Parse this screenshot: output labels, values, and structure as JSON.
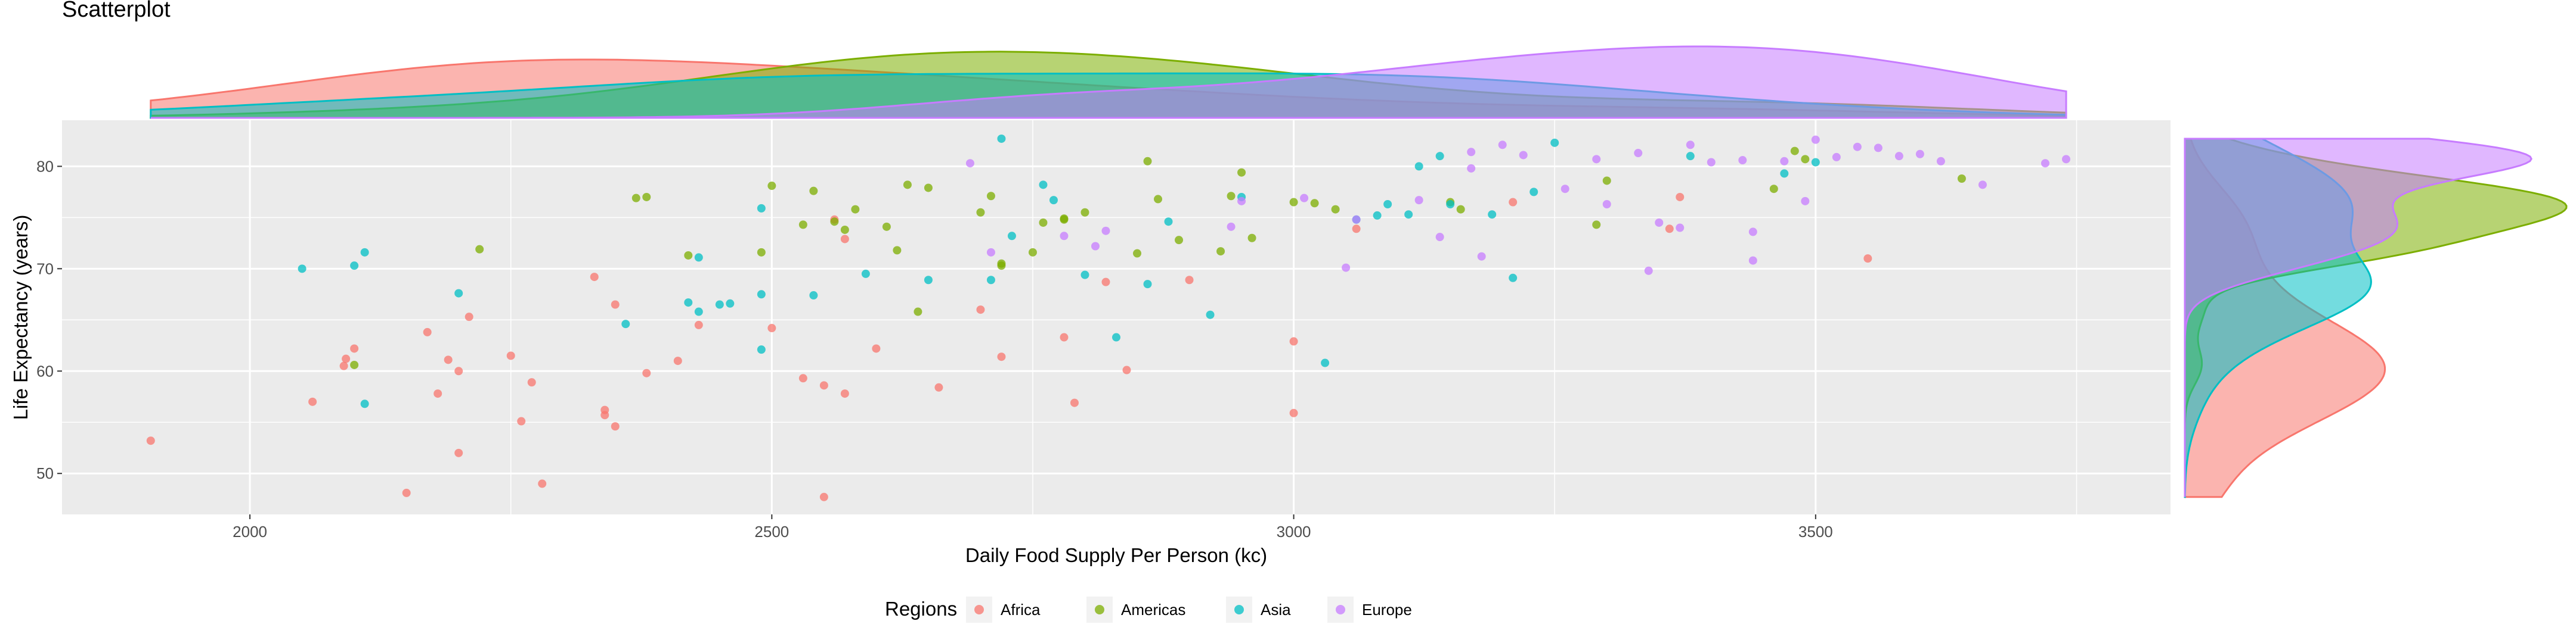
{
  "chart_data": {
    "type": "scatter",
    "title": "Scatterplot",
    "xlabel": "Daily Food Supply Per Person (kc)",
    "ylabel": "Life Expectancy (years)",
    "xlim": [
      1820,
      3840
    ],
    "ylim": [
      46,
      84.5
    ],
    "x_ticks": [
      2000,
      2500,
      3000,
      3500
    ],
    "y_ticks": [
      50,
      60,
      70,
      80
    ],
    "grid": true,
    "legend": {
      "title": "Regions",
      "position": "bottom"
    },
    "series": [
      {
        "name": "Africa",
        "color": "#F8766D",
        "points": [
          [
            1905,
            53.2
          ],
          [
            2060,
            57
          ],
          [
            2090,
            60.5
          ],
          [
            2092,
            61.2
          ],
          [
            2100,
            62.2
          ],
          [
            2150,
            48.1
          ],
          [
            2170,
            63.8
          ],
          [
            2180,
            57.8
          ],
          [
            2190,
            61.1
          ],
          [
            2200,
            60
          ],
          [
            2200,
            52
          ],
          [
            2210,
            65.3
          ],
          [
            2250,
            61.5
          ],
          [
            2260,
            55.1
          ],
          [
            2270,
            58.9
          ],
          [
            2280,
            49
          ],
          [
            2330,
            69.2
          ],
          [
            2340,
            56.2
          ],
          [
            2340,
            55.7
          ],
          [
            2350,
            66.5
          ],
          [
            2350,
            54.6
          ],
          [
            2380,
            59.8
          ],
          [
            2410,
            61
          ],
          [
            2430,
            64.5
          ],
          [
            2500,
            64.2
          ],
          [
            2530,
            59.3
          ],
          [
            2550,
            58.6
          ],
          [
            2550,
            47.7
          ],
          [
            2560,
            74.8
          ],
          [
            2570,
            72.9
          ],
          [
            2570,
            57.8
          ],
          [
            2600,
            62.2
          ],
          [
            2660,
            58.4
          ],
          [
            2700,
            66
          ],
          [
            2720,
            61.4
          ],
          [
            2780,
            63.3
          ],
          [
            2790,
            56.9
          ],
          [
            2820,
            68.7
          ],
          [
            2840,
            60.1
          ],
          [
            2900,
            68.9
          ],
          [
            3000,
            62.9
          ],
          [
            3000,
            55.9
          ],
          [
            3060,
            73.9
          ],
          [
            3210,
            76.5
          ],
          [
            3360,
            73.9
          ],
          [
            3370,
            77
          ],
          [
            3550,
            71
          ]
        ]
      },
      {
        "name": "Americas",
        "color": "#7CAE00",
        "points": [
          [
            2100,
            60.6
          ],
          [
            2220,
            71.9
          ],
          [
            2370,
            76.9
          ],
          [
            2380,
            77
          ],
          [
            2420,
            71.3
          ],
          [
            2490,
            71.6
          ],
          [
            2500,
            78.1
          ],
          [
            2530,
            74.3
          ],
          [
            2540,
            77.6
          ],
          [
            2560,
            74.6
          ],
          [
            2570,
            73.8
          ],
          [
            2580,
            75.8
          ],
          [
            2610,
            74.1
          ],
          [
            2620,
            71.8
          ],
          [
            2630,
            78.2
          ],
          [
            2640,
            65.8
          ],
          [
            2650,
            77.9
          ],
          [
            2700,
            75.5
          ],
          [
            2710,
            77.1
          ],
          [
            2720,
            70.3
          ],
          [
            2720,
            70.5
          ],
          [
            2750,
            71.6
          ],
          [
            2760,
            74.5
          ],
          [
            2780,
            74.8
          ],
          [
            2780,
            74.9
          ],
          [
            2800,
            75.5
          ],
          [
            2850,
            71.5
          ],
          [
            2860,
            80.5
          ],
          [
            2870,
            76.8
          ],
          [
            2890,
            72.8
          ],
          [
            2930,
            71.7
          ],
          [
            2940,
            77.1
          ],
          [
            2950,
            79.4
          ],
          [
            2960,
            73
          ],
          [
            3000,
            76.5
          ],
          [
            3020,
            76.4
          ],
          [
            3040,
            75.8
          ],
          [
            3150,
            76.5
          ],
          [
            3160,
            75.8
          ],
          [
            3290,
            74.3
          ],
          [
            3300,
            78.6
          ],
          [
            3460,
            77.8
          ],
          [
            3480,
            81.5
          ],
          [
            3490,
            80.7
          ],
          [
            3640,
            78.8
          ]
        ]
      },
      {
        "name": "Asia",
        "color": "#00BFC4",
        "points": [
          [
            2050,
            70
          ],
          [
            2100,
            70.3
          ],
          [
            2110,
            71.6
          ],
          [
            2110,
            56.8
          ],
          [
            2200,
            67.6
          ],
          [
            2360,
            64.6
          ],
          [
            2420,
            66.7
          ],
          [
            2430,
            71.1
          ],
          [
            2430,
            65.8
          ],
          [
            2450,
            66.5
          ],
          [
            2460,
            66.6
          ],
          [
            2490,
            75.9
          ],
          [
            2490,
            67.5
          ],
          [
            2490,
            62.1
          ],
          [
            2540,
            67.4
          ],
          [
            2590,
            69.5
          ],
          [
            2650,
            68.9
          ],
          [
            2710,
            68.9
          ],
          [
            2720,
            82.7
          ],
          [
            2730,
            73.2
          ],
          [
            2760,
            78.2
          ],
          [
            2770,
            76.7
          ],
          [
            2800,
            69.4
          ],
          [
            2830,
            63.3
          ],
          [
            2860,
            68.5
          ],
          [
            2880,
            74.6
          ],
          [
            2920,
            65.5
          ],
          [
            2950,
            77
          ],
          [
            3030,
            60.8
          ],
          [
            3060,
            74.8
          ],
          [
            3080,
            75.2
          ],
          [
            3090,
            76.3
          ],
          [
            3110,
            75.3
          ],
          [
            3120,
            80
          ],
          [
            3140,
            81
          ],
          [
            3150,
            76.3
          ],
          [
            3190,
            75.3
          ],
          [
            3210,
            69.1
          ],
          [
            3230,
            77.5
          ],
          [
            3250,
            82.3
          ],
          [
            3380,
            81
          ],
          [
            3470,
            79.3
          ],
          [
            3500,
            80.4
          ]
        ]
      },
      {
        "name": "Europe",
        "color": "#C77CFF",
        "points": [
          [
            2690,
            80.3
          ],
          [
            2710,
            71.6
          ],
          [
            2780,
            73.2
          ],
          [
            2810,
            72.2
          ],
          [
            2820,
            73.7
          ],
          [
            2940,
            74.1
          ],
          [
            2950,
            76.6
          ],
          [
            3010,
            76.9
          ],
          [
            3050,
            70.1
          ],
          [
            3060,
            74.8
          ],
          [
            3120,
            76.7
          ],
          [
            3140,
            73.1
          ],
          [
            3170,
            81.4
          ],
          [
            3170,
            79.8
          ],
          [
            3180,
            71.2
          ],
          [
            3200,
            82.1
          ],
          [
            3220,
            81.1
          ],
          [
            3260,
            77.8
          ],
          [
            3290,
            80.7
          ],
          [
            3300,
            76.3
          ],
          [
            3330,
            81.3
          ],
          [
            3340,
            69.8
          ],
          [
            3350,
            74.5
          ],
          [
            3370,
            74
          ],
          [
            3380,
            82.1
          ],
          [
            3400,
            80.4
          ],
          [
            3430,
            80.6
          ],
          [
            3440,
            73.6
          ],
          [
            3440,
            70.8
          ],
          [
            3470,
            80.5
          ],
          [
            3490,
            76.6
          ],
          [
            3500,
            82.6
          ],
          [
            3520,
            80.9
          ],
          [
            3540,
            81.9
          ],
          [
            3560,
            81.8
          ],
          [
            3580,
            81
          ],
          [
            3600,
            81.2
          ],
          [
            3620,
            80.5
          ],
          [
            3660,
            78.2
          ],
          [
            3720,
            80.3
          ],
          [
            3740,
            80.7
          ]
        ]
      }
    ]
  }
}
